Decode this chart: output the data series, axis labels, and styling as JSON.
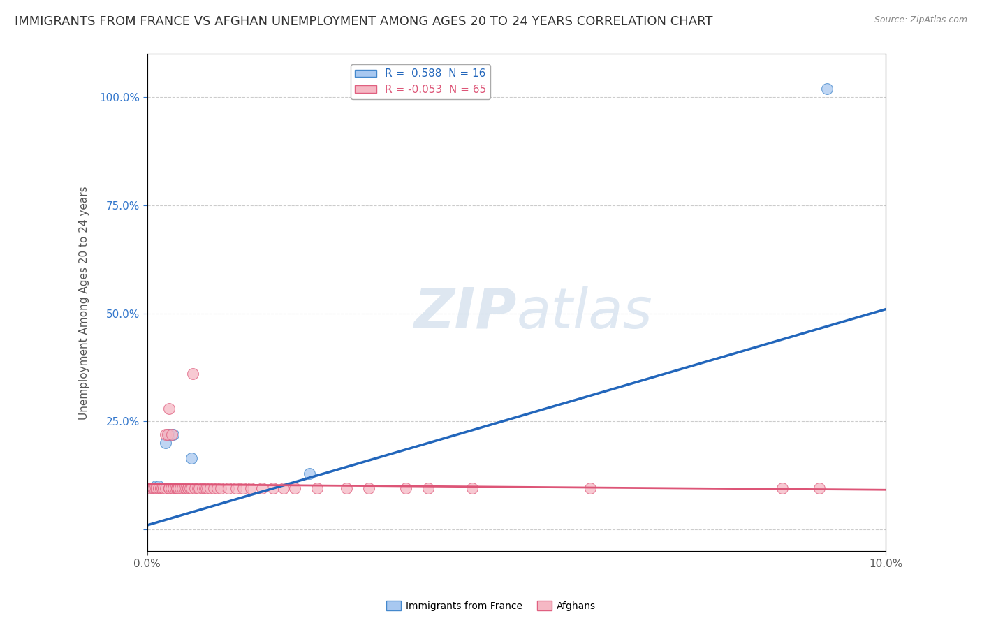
{
  "title": "IMMIGRANTS FROM FRANCE VS AFGHAN UNEMPLOYMENT AMONG AGES 20 TO 24 YEARS CORRELATION CHART",
  "source": "Source: ZipAtlas.com",
  "ylabel": "Unemployment Among Ages 20 to 24 years",
  "watermark_zip": "ZIP",
  "watermark_atlas": "atlas",
  "xlim": [
    0.0,
    0.1
  ],
  "ylim": [
    -0.05,
    1.1
  ],
  "xtick_positions": [
    0.0,
    0.1
  ],
  "xticklabels": [
    "0.0%",
    "10.0%"
  ],
  "yticks": [
    0.0,
    0.25,
    0.5,
    0.75,
    1.0
  ],
  "yticklabels": [
    "",
    "25.0%",
    "50.0%",
    "75.0%",
    "100.0%"
  ],
  "blue_R": "0.588",
  "blue_N": "16",
  "pink_R": "-0.053",
  "pink_N": "65",
  "blue_fill": "#a8c8f0",
  "pink_fill": "#f5b8c4",
  "blue_edge": "#4488cc",
  "pink_edge": "#e06080",
  "blue_line_color": "#2266bb",
  "pink_line_color": "#dd5577",
  "blue_scatter_x": [
    0.0008,
    0.001,
    0.0012,
    0.0015,
    0.0018,
    0.002,
    0.0022,
    0.0025,
    0.003,
    0.0035,
    0.004,
    0.0055,
    0.006,
    0.0075,
    0.022,
    0.092
  ],
  "blue_scatter_y": [
    0.095,
    0.095,
    0.1,
    0.1,
    0.095,
    0.095,
    0.095,
    0.2,
    0.22,
    0.22,
    0.095,
    0.095,
    0.165,
    0.095,
    0.13,
    1.02
  ],
  "pink_scatter_x": [
    0.0005,
    0.0008,
    0.001,
    0.0012,
    0.0013,
    0.0015,
    0.0015,
    0.0018,
    0.0018,
    0.002,
    0.0022,
    0.0022,
    0.0025,
    0.0025,
    0.0028,
    0.003,
    0.003,
    0.003,
    0.003,
    0.0032,
    0.0033,
    0.0035,
    0.0035,
    0.0038,
    0.004,
    0.004,
    0.0042,
    0.0042,
    0.0045,
    0.0048,
    0.005,
    0.0052,
    0.0055,
    0.0055,
    0.0058,
    0.006,
    0.0062,
    0.0065,
    0.0068,
    0.007,
    0.0075,
    0.0078,
    0.008,
    0.0082,
    0.0085,
    0.009,
    0.0095,
    0.01,
    0.011,
    0.012,
    0.013,
    0.014,
    0.0155,
    0.017,
    0.0185,
    0.02,
    0.023,
    0.027,
    0.03,
    0.035,
    0.038,
    0.044,
    0.06,
    0.086,
    0.091
  ],
  "pink_scatter_y": [
    0.095,
    0.095,
    0.095,
    0.095,
    0.095,
    0.095,
    0.095,
    0.095,
    0.095,
    0.095,
    0.095,
    0.095,
    0.095,
    0.22,
    0.22,
    0.095,
    0.095,
    0.095,
    0.28,
    0.095,
    0.22,
    0.095,
    0.095,
    0.095,
    0.095,
    0.095,
    0.095,
    0.095,
    0.095,
    0.095,
    0.095,
    0.095,
    0.095,
    0.095,
    0.095,
    0.095,
    0.36,
    0.095,
    0.095,
    0.095,
    0.095,
    0.095,
    0.095,
    0.095,
    0.095,
    0.095,
    0.095,
    0.095,
    0.095,
    0.095,
    0.095,
    0.095,
    0.095,
    0.095,
    0.095,
    0.095,
    0.095,
    0.095,
    0.095,
    0.095,
    0.095,
    0.095,
    0.095,
    0.095,
    0.095
  ],
  "blue_line_x": [
    0.0,
    0.1
  ],
  "blue_line_y": [
    0.01,
    0.51
  ],
  "pink_line_x": [
    0.0,
    0.1
  ],
  "pink_line_y": [
    0.105,
    0.092
  ],
  "grid_color": "#cccccc",
  "bg_color": "#ffffff",
  "title_fontsize": 13,
  "axis_label_fontsize": 11,
  "tick_fontsize": 11,
  "legend_fontsize": 11,
  "watermark_fontsize_zip": 58,
  "watermark_fontsize_atlas": 58,
  "ytick_color": "#3377cc",
  "xtick_color": "#555555",
  "spine_color": "#bbbbbb"
}
